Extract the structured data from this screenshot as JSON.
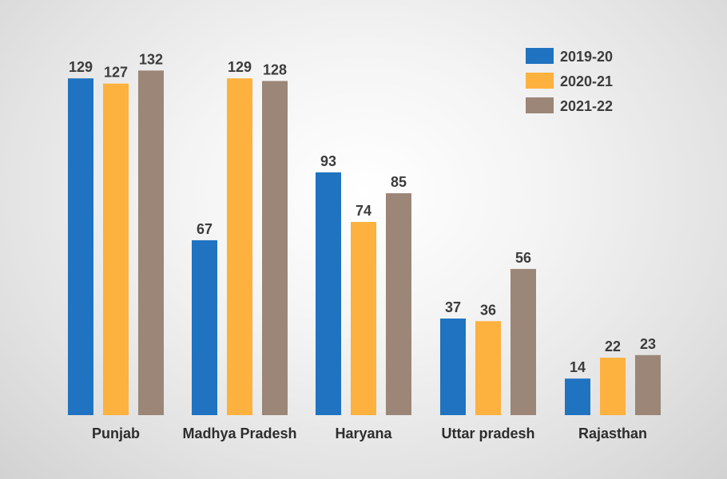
{
  "chart_data": {
    "type": "bar",
    "categories": [
      "Punjab",
      "Madhya Pradesh",
      "Haryana",
      "Uttar pradesh",
      "Rajasthan"
    ],
    "series": [
      {
        "name": "2019-20",
        "color": "#1f73c1",
        "values": [
          129,
          67,
          93,
          37,
          14
        ]
      },
      {
        "name": "2020-21",
        "color": "#fdb13e",
        "values": [
          127,
          129,
          74,
          36,
          22
        ]
      },
      {
        "name": "2021-22",
        "color": "#9c8677",
        "values": [
          132,
          128,
          85,
          56,
          23
        ]
      }
    ],
    "ylim": [
      0,
      140
    ],
    "grid": false,
    "legend_position": "top-right",
    "data_labels": true
  }
}
